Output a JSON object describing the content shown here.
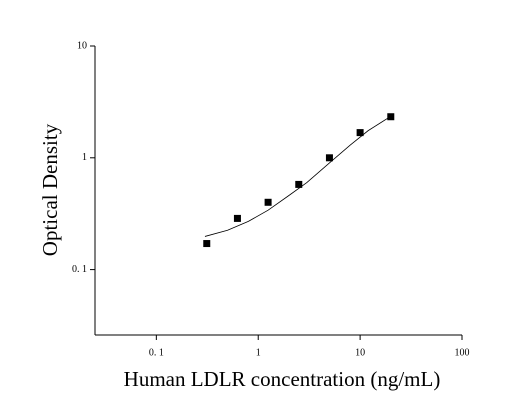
{
  "chart_data": {
    "type": "scatter",
    "x_label": "Human LDLR concentration (ng/mL)",
    "y_label": "Optical Density",
    "x": [
      0.3125,
      0.625,
      1.25,
      2.5,
      5,
      10,
      20
    ],
    "series": [
      {
        "color": "#000000",
        "values": [
          0.171,
          0.287,
          0.4,
          0.578,
          1.0,
          1.68,
          2.33
        ]
      }
    ],
    "fit": {
      "color": "#000000",
      "x": [
        0.3,
        0.5,
        0.8,
        1.25,
        2,
        3,
        5,
        8,
        12,
        20
      ],
      "values": [
        0.198,
        0.225,
        0.27,
        0.34,
        0.46,
        0.6,
        0.9,
        1.3,
        1.75,
        2.35
      ]
    },
    "xscale": "log",
    "yscale": "log",
    "xlim": [
      0.025,
      100
    ],
    "ylim": [
      0.026,
      10
    ],
    "xticks": [
      {
        "value": 0.1,
        "label": "0. 1"
      },
      1,
      10,
      100
    ],
    "yticks": [
      {
        "value": 0.1,
        "label": "0. 1"
      },
      1,
      10
    ]
  }
}
